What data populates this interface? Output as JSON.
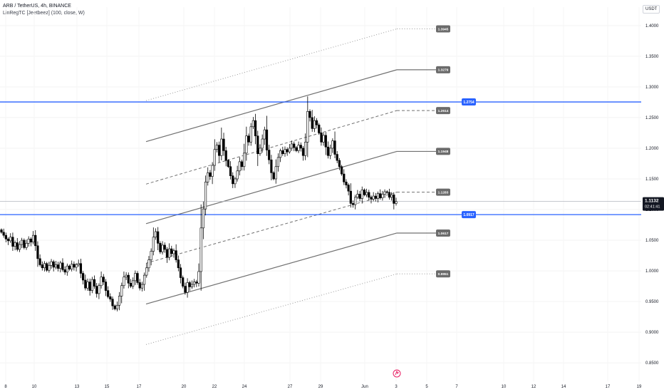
{
  "header": {
    "symbol_line": "ARB / TetherUS, 4h, BINANCE",
    "indicator_line": "LinRegTC [Jeetbeez] (100, close, W)"
  },
  "currency_button": "USDT",
  "colors": {
    "up_candle": "#ffffff",
    "down_candle": "#000000",
    "candle_outline": "#000000",
    "horizontal_level": "#2962ff",
    "regression_line": "#707070",
    "dotted_line": "#9a9a9a",
    "tag_bg": "#6b6b6b",
    "last_price_bg": "#131722"
  },
  "chart_data": {
    "type": "candlestick",
    "price_axis": {
      "ticks": [
        "1.4000",
        "1.3500",
        "1.3000",
        "1.2500",
        "1.2000",
        "1.1500",
        "1.1000",
        "1.0500",
        "1.0000",
        "0.9500",
        "0.9000",
        "0.8500"
      ],
      "ylim": [
        0.82,
        1.43
      ]
    },
    "time_axis": {
      "ticks": [
        "8",
        "10",
        "13",
        "15",
        "17",
        "20",
        "22",
        "24",
        "27",
        "29",
        "Jun",
        "3",
        "5",
        "7",
        "10",
        "12",
        "14",
        "17",
        "19"
      ]
    },
    "horizontal_levels": [
      {
        "price": 1.2754,
        "label": "1.2754"
      },
      {
        "price": 1.0917,
        "label": "1.0917"
      }
    ],
    "channel_tags": [
      {
        "price": 1.3945,
        "label": "1.3945",
        "style": "dotted"
      },
      {
        "price": 1.3279,
        "label": "1.3279",
        "style": "solid"
      },
      {
        "price": 1.2614,
        "label": "1.2614",
        "style": "dashed"
      },
      {
        "price": 1.1948,
        "label": "1.1948",
        "style": "solid"
      },
      {
        "price": 1.1283,
        "label": "1.1283",
        "style": "dashed"
      },
      {
        "price": 1.0617,
        "label": "1.0617",
        "style": "solid"
      },
      {
        "price": 0.9951,
        "label": "0.9951",
        "style": "dotted"
      }
    ],
    "last_price": {
      "value": "1.1132",
      "countdown": "02:41:41"
    },
    "series_close": [
      1.063,
      1.058,
      1.052,
      1.049,
      1.055,
      1.04,
      1.046,
      1.035,
      1.043,
      1.05,
      1.038,
      1.045,
      1.052,
      1.047,
      1.058,
      1.041,
      1.02,
      1.01,
      1.005,
      1.012,
      1.001,
      1.009,
      1.015,
      1.006,
      1.01,
      1.004,
      1.013,
      1.002,
      0.998,
      1.008,
      1.003,
      1.011,
      1.006,
      1.01,
      1.012,
      0.996,
      0.985,
      0.972,
      0.982,
      0.968,
      0.986,
      0.975,
      0.963,
      0.976,
      0.99,
      0.982,
      0.968,
      0.958,
      0.954,
      0.943,
      0.938,
      0.944,
      0.959,
      0.976,
      0.99,
      0.993,
      0.98,
      0.975,
      0.984,
      0.996,
      0.981,
      0.972,
      0.978,
      0.993,
      1.005,
      1.018,
      1.032,
      1.055,
      1.064,
      1.045,
      1.031,
      1.042,
      1.035,
      1.022,
      1.036,
      1.028,
      1.033,
      1.018,
      1.005,
      0.989,
      0.975,
      0.965,
      0.981,
      0.974,
      0.978,
      0.982,
      0.98,
      0.999,
      1.07,
      1.101,
      1.145,
      1.16,
      1.154,
      1.172,
      1.198,
      1.205,
      1.188,
      1.215,
      1.196,
      1.18,
      1.17,
      1.155,
      1.142,
      1.15,
      1.163,
      1.178,
      1.17,
      1.192,
      1.22,
      1.21,
      1.235,
      1.245,
      1.22,
      1.191,
      1.2,
      1.215,
      1.23,
      1.197,
      1.181,
      1.16,
      1.15,
      1.17,
      1.185,
      1.196,
      1.191,
      1.198,
      1.194,
      1.2,
      1.207,
      1.201,
      1.196,
      1.205,
      1.2,
      1.188,
      1.21,
      1.26,
      1.25,
      1.232,
      1.245,
      1.238,
      1.225,
      1.21,
      1.221,
      1.202,
      1.188,
      1.2,
      1.212,
      1.19,
      1.18,
      1.17,
      1.158,
      1.145,
      1.14,
      1.13,
      1.11,
      1.108,
      1.12,
      1.125,
      1.118,
      1.132,
      1.124,
      1.128,
      1.12,
      1.117,
      1.122,
      1.118,
      1.126,
      1.119,
      1.125,
      1.129,
      1.128,
      1.12,
      1.124,
      1.11,
      1.113
    ]
  },
  "footer_icon": "tradingview-logo-icon"
}
